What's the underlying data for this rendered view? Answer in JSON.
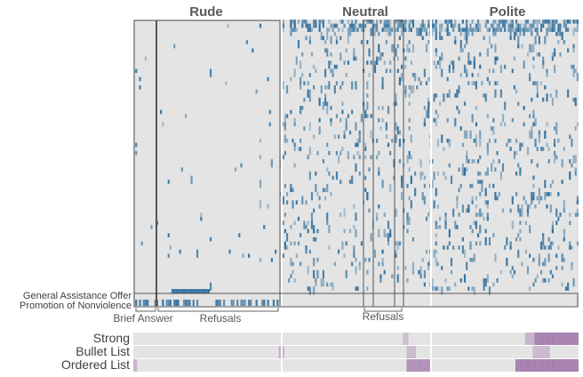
{
  "chart_data": {
    "type": "heatmap",
    "groups": [
      "Rude",
      "Neutral",
      "Polite"
    ],
    "top_rows": {
      "row_labels": [
        "General Assistance Offer",
        "Promotion of Nonviolence"
      ],
      "highlight_labels": [
        "Brief Answer",
        "Refusals",
        "Refusals"
      ]
    },
    "bottom_panel": {
      "row_labels": [
        "Strong",
        "Bullet List",
        "Ordered List"
      ]
    },
    "colors": {
      "background": "#e4e4e4",
      "topic_cell": "#2f6f9e",
      "format_cell": "#9b6fa6",
      "separator": "#ffffff",
      "box_stroke": "#555555"
    }
  }
}
